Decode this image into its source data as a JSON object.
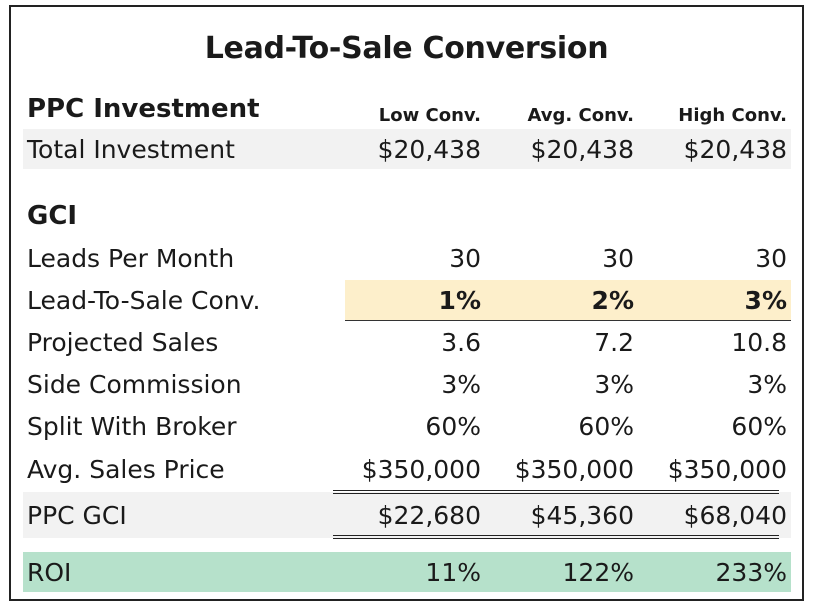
{
  "title": "Lead-To-Sale Conversion",
  "ppc_section": {
    "heading": "PPC Investment",
    "columns": [
      "Low Conv.",
      "Avg. Conv.",
      "High Conv."
    ],
    "total_investment": {
      "label": "Total Investment",
      "values": [
        "$20,438",
        "$20,438",
        "$20,438"
      ]
    }
  },
  "gci_section": {
    "heading": "GCI",
    "rows": [
      {
        "label": "Leads Per Month",
        "values": [
          "30",
          "30",
          "30"
        ]
      },
      {
        "label": "Lead-To-Sale Conv.",
        "values": [
          "1%",
          "2%",
          "3%"
        ]
      },
      {
        "label": "Projected Sales",
        "values": [
          "3.6",
          "7.2",
          "10.8"
        ]
      },
      {
        "label": "Side Commission",
        "values": [
          "3%",
          "3%",
          "3%"
        ]
      },
      {
        "label": "Split With Broker",
        "values": [
          "60%",
          "60%",
          "60%"
        ]
      },
      {
        "label": "Avg. Sales Price",
        "values": [
          "$350,000",
          "$350,000",
          "$350,000"
        ]
      }
    ],
    "ppc_gci": {
      "label": "PPC GCI",
      "values": [
        "$22,680",
        "$45,360",
        "$68,040"
      ]
    }
  },
  "roi": {
    "label": "ROI",
    "values": [
      "11%",
      "122%",
      "233%"
    ]
  },
  "colors": {
    "highlight": "#fdefcb",
    "roi_band": "#b6e1cb",
    "shade": "#f2f2f2"
  }
}
